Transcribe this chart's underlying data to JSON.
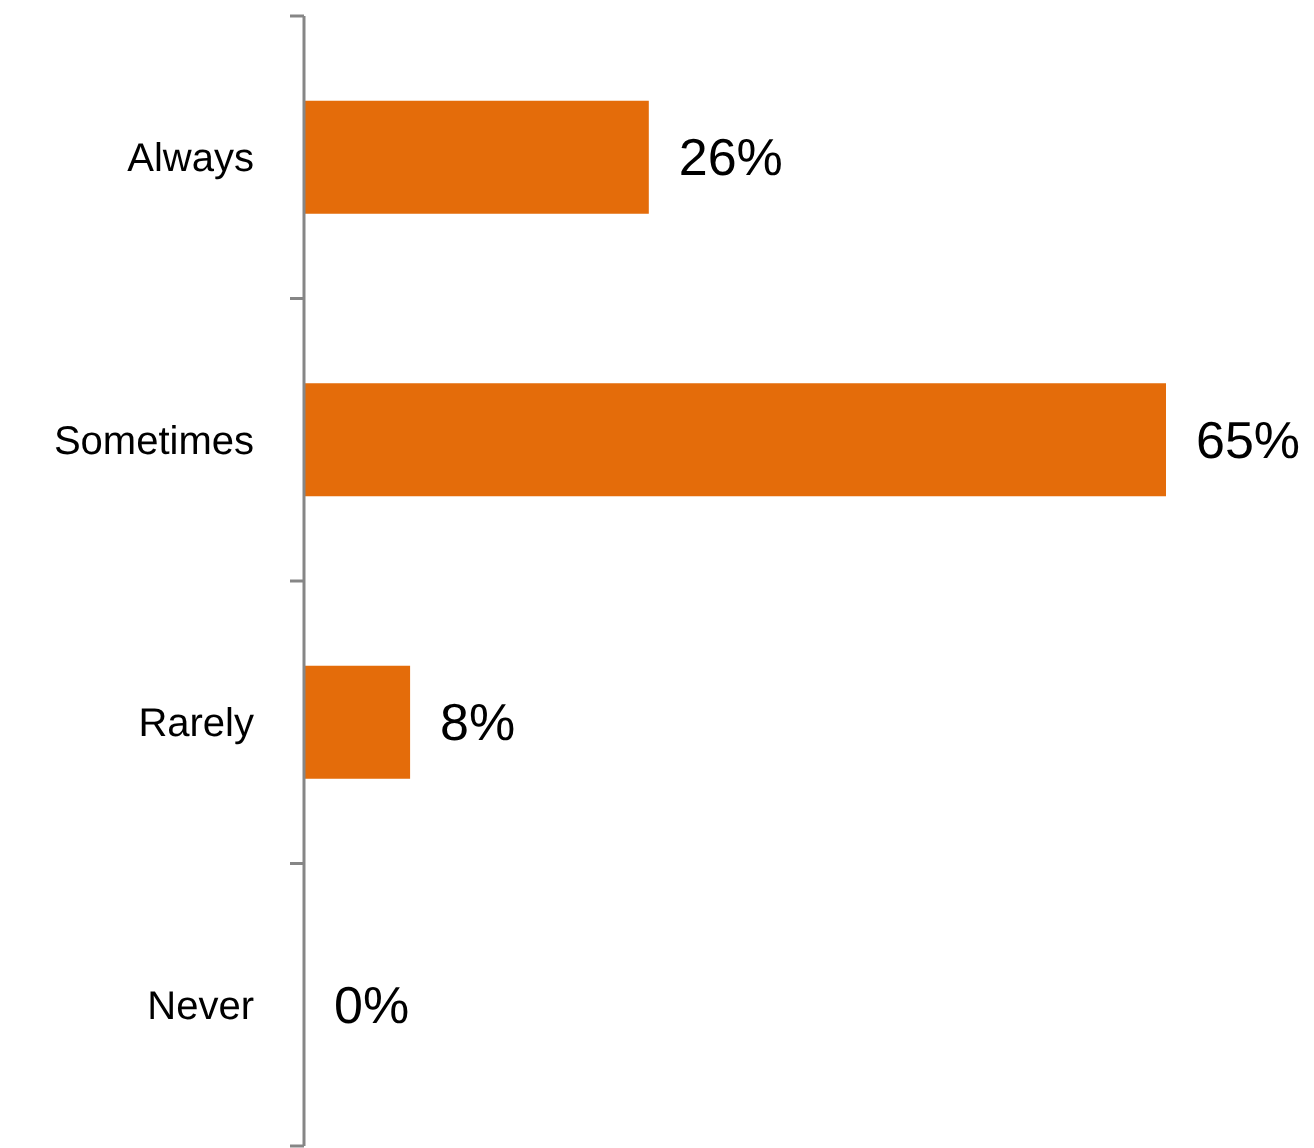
{
  "chart_data": {
    "type": "bar",
    "orientation": "horizontal",
    "categories": [
      "Always",
      "Sometimes",
      "Rarely",
      "Never"
    ],
    "values": [
      26,
      65,
      8,
      0
    ],
    "value_labels": [
      "26%",
      "65%",
      "8%",
      "0%"
    ],
    "color": "#e46c0a"
  }
}
